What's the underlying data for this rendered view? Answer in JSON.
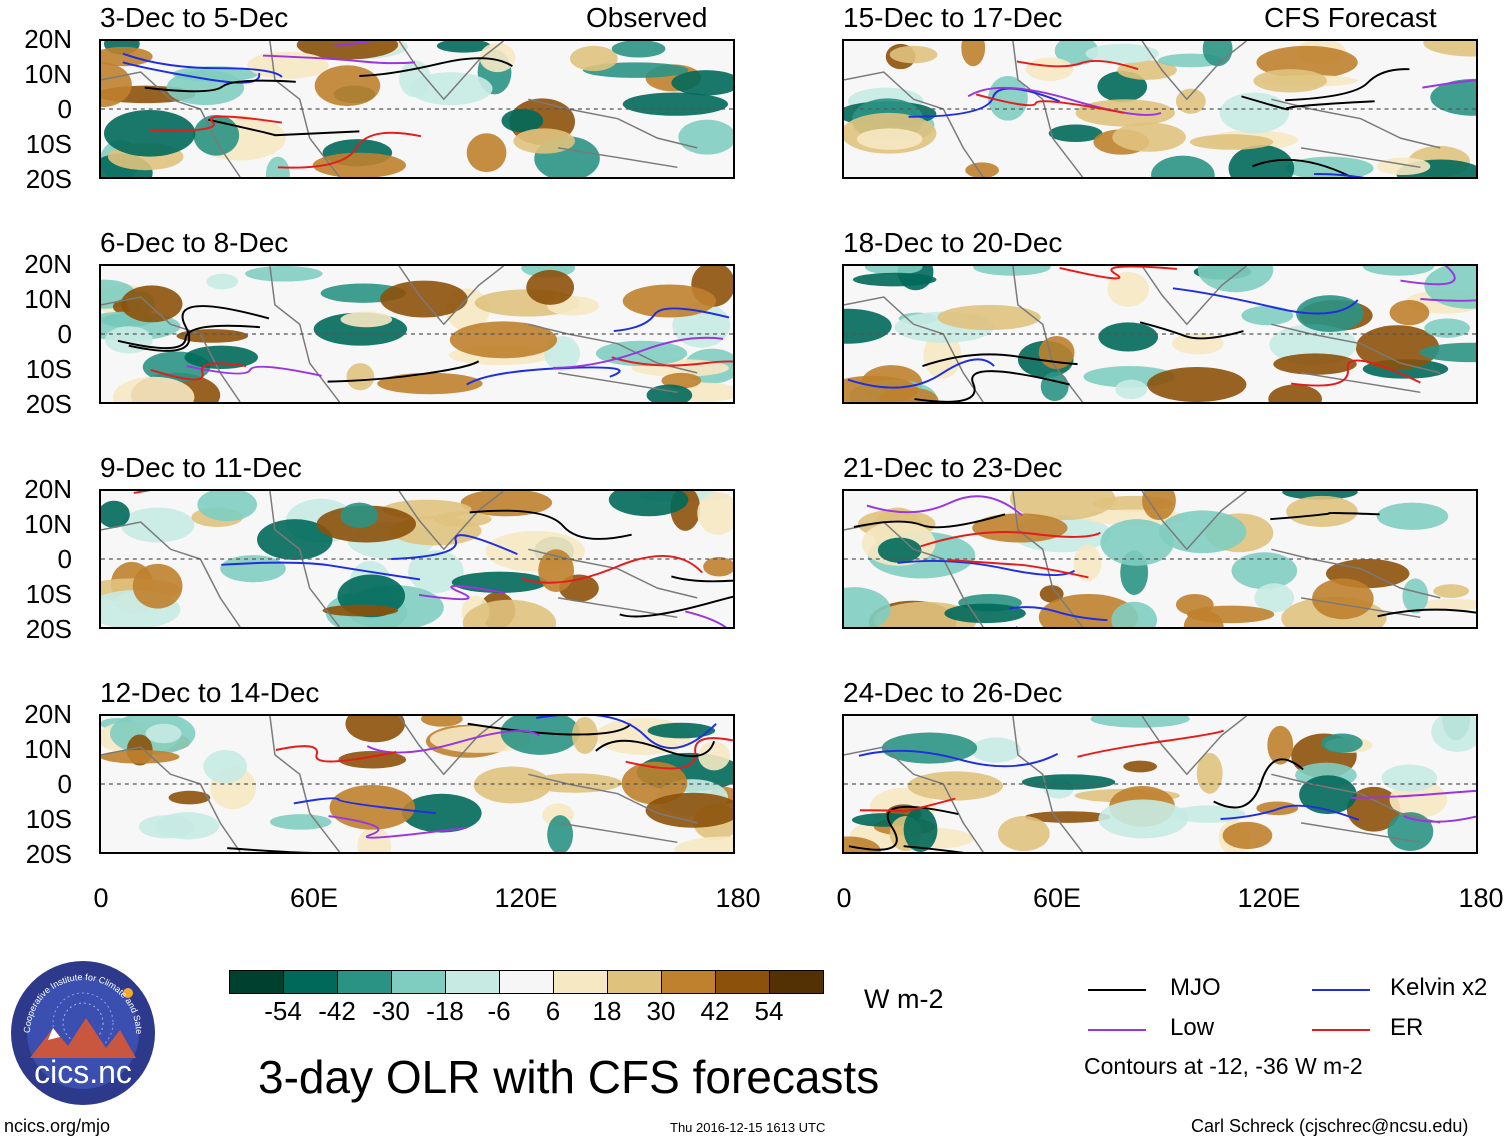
{
  "header": {
    "observed_label": "Observed",
    "forecast_label": "CFS Forecast"
  },
  "panels": [
    {
      "title": "3-Dec to 5-Dec"
    },
    {
      "title": "6-Dec to 8-Dec"
    },
    {
      "title": "9-Dec to 11-Dec"
    },
    {
      "title": "12-Dec to 14-Dec"
    },
    {
      "title": "15-Dec to 17-Dec"
    },
    {
      "title": "18-Dec to 20-Dec"
    },
    {
      "title": "21-Dec to 23-Dec"
    },
    {
      "title": "24-Dec to 26-Dec"
    }
  ],
  "axes": {
    "lat_labels": [
      "20N",
      "10N",
      "0",
      "10S",
      "20S"
    ],
    "lon_labels": [
      "0",
      "60E",
      "120E",
      "180"
    ]
  },
  "colorbar": {
    "colors": [
      "#00402f",
      "#00695a",
      "#2a9384",
      "#7fcdc0",
      "#c7eae3",
      "#f6f6f6",
      "#f6e8c3",
      "#dfc27d",
      "#bf812d",
      "#8c510a",
      "#543005"
    ],
    "labels": [
      "-54",
      "-42",
      "-30",
      "-18",
      "-6",
      "6",
      "18",
      "30",
      "42",
      "54"
    ],
    "units": "W m-2"
  },
  "legend": {
    "mjo": "MJO",
    "kelvin": "Kelvin x2",
    "low": "Low",
    "er": "ER",
    "note": "Contours at -12, -36 W m-2",
    "colors": {
      "mjo": "#000000",
      "kelvin": "#1f2ee0",
      "low": "#9a35e0",
      "er": "#e51c1c"
    }
  },
  "logo_text": "cics.nc",
  "logo_ring_text": "Cooperative Institute for Climate and Satellites",
  "main_title": "3-day OLR with CFS forecasts",
  "footer": {
    "url": "ncics.org/mjo",
    "timestamp": "Thu 2016-12-15 1613 UTC",
    "credit": "Carl Schreck (cjschrec@ncsu.edu)"
  }
}
